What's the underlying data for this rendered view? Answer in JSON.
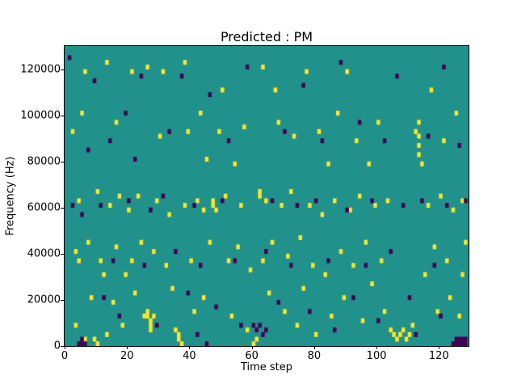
{
  "figure": {
    "title": "Predicted : PM",
    "xlabel": "Time step",
    "ylabel": "Frequency (Hz)"
  },
  "chart_data": {
    "type": "heatmap",
    "title": "Predicted : PM",
    "xlabel": "Time step",
    "ylabel": "Frequency (Hz)",
    "xlim": [
      0,
      129.5
    ],
    "ylim": [
      0,
      130000
    ],
    "x_ticks": [
      0,
      20,
      40,
      60,
      80,
      100,
      120
    ],
    "y_ticks": [
      0,
      20000,
      40000,
      60000,
      80000,
      100000,
      120000
    ],
    "grid": false,
    "legend": "none",
    "colors": {
      "background_mid": "#21918c",
      "high": "#fde725",
      "low": "#440154",
      "axis": "#000000"
    },
    "cell": {
      "x_unit_steps": 1,
      "y_unit_hz": 2000
    },
    "high_cells_x_ykhz": [
      [
        2,
        92
      ],
      [
        3,
        8
      ],
      [
        3,
        40
      ],
      [
        4,
        36
      ],
      [
        4,
        62
      ],
      [
        5,
        100
      ],
      [
        6,
        118
      ],
      [
        6,
        2
      ],
      [
        7,
        44
      ],
      [
        8,
        20
      ],
      [
        9,
        2
      ],
      [
        10,
        0
      ],
      [
        10,
        66
      ],
      [
        11,
        36
      ],
      [
        12,
        30
      ],
      [
        13,
        4
      ],
      [
        13,
        122
      ],
      [
        14,
        60
      ],
      [
        15,
        18
      ],
      [
        16,
        42
      ],
      [
        16,
        96
      ],
      [
        17,
        64
      ],
      [
        18,
        8
      ],
      [
        19,
        30
      ],
      [
        20,
        58
      ],
      [
        21,
        118
      ],
      [
        21,
        36
      ],
      [
        22,
        22
      ],
      [
        23,
        64
      ],
      [
        24,
        44
      ],
      [
        25,
        12
      ],
      [
        26,
        120
      ],
      [
        26,
        14
      ],
      [
        26,
        12
      ],
      [
        27,
        10
      ],
      [
        27,
        8
      ],
      [
        27,
        6
      ],
      [
        28,
        12
      ],
      [
        28,
        40
      ],
      [
        29,
        62
      ],
      [
        30,
        90
      ],
      [
        31,
        118
      ],
      [
        32,
        34
      ],
      [
        33,
        56
      ],
      [
        34,
        24
      ],
      [
        35,
        6
      ],
      [
        36,
        2
      ],
      [
        36,
        4
      ],
      [
        37,
        0
      ],
      [
        38,
        122
      ],
      [
        38,
        60
      ],
      [
        39,
        92
      ],
      [
        40,
        36
      ],
      [
        41,
        14
      ],
      [
        42,
        62
      ],
      [
        43,
        100
      ],
      [
        44,
        58
      ],
      [
        44,
        20
      ],
      [
        45,
        80
      ],
      [
        46,
        44
      ],
      [
        47,
        62
      ],
      [
        47,
        60
      ],
      [
        48,
        58
      ],
      [
        49,
        92
      ],
      [
        50,
        110
      ],
      [
        51,
        64
      ],
      [
        52,
        36
      ],
      [
        53,
        12
      ],
      [
        54,
        78
      ],
      [
        55,
        42
      ],
      [
        56,
        60
      ],
      [
        57,
        94
      ],
      [
        58,
        6
      ],
      [
        59,
        32
      ],
      [
        60,
        0
      ],
      [
        61,
        2
      ],
      [
        62,
        66
      ],
      [
        62,
        64
      ],
      [
        63,
        120
      ],
      [
        63,
        36
      ],
      [
        64,
        62
      ],
      [
        65,
        22
      ],
      [
        66,
        44
      ],
      [
        67,
        110
      ],
      [
        68,
        96
      ],
      [
        69,
        60
      ],
      [
        70,
        14
      ],
      [
        71,
        38
      ],
      [
        72,
        66
      ],
      [
        73,
        90
      ],
      [
        74,
        8
      ],
      [
        75,
        46
      ],
      [
        76,
        24
      ],
      [
        77,
        118
      ],
      [
        78,
        60
      ],
      [
        79,
        34
      ],
      [
        80,
        4
      ],
      [
        81,
        92
      ],
      [
        82,
        56
      ],
      [
        83,
        30
      ],
      [
        84,
        78
      ],
      [
        85,
        12
      ],
      [
        86,
        62
      ],
      [
        87,
        100
      ],
      [
        88,
        40
      ],
      [
        89,
        20
      ],
      [
        90,
        118
      ],
      [
        91,
        58
      ],
      [
        92,
        34
      ],
      [
        93,
        88
      ],
      [
        94,
        64
      ],
      [
        95,
        10
      ],
      [
        96,
        44
      ],
      [
        97,
        78
      ],
      [
        98,
        26
      ],
      [
        99,
        60
      ],
      [
        100,
        96
      ],
      [
        101,
        36
      ],
      [
        102,
        14
      ],
      [
        103,
        62
      ],
      [
        104,
        6
      ],
      [
        105,
        4
      ],
      [
        106,
        2
      ],
      [
        107,
        4
      ],
      [
        108,
        6
      ],
      [
        109,
        2
      ],
      [
        110,
        4
      ],
      [
        111,
        8
      ],
      [
        112,
        92
      ],
      [
        113,
        96
      ],
      [
        113,
        90
      ],
      [
        113,
        86
      ],
      [
        113,
        82
      ],
      [
        114,
        78
      ],
      [
        115,
        30
      ],
      [
        116,
        60
      ],
      [
        117,
        110
      ],
      [
        118,
        42
      ],
      [
        119,
        14
      ],
      [
        120,
        64
      ],
      [
        121,
        88
      ],
      [
        122,
        36
      ],
      [
        123,
        20
      ],
      [
        124,
        58
      ],
      [
        125,
        100
      ],
      [
        126,
        12
      ],
      [
        127,
        30
      ],
      [
        127,
        62
      ],
      [
        128,
        44
      ]
    ],
    "low_cells_x_ykhz": [
      [
        1,
        124
      ],
      [
        2,
        60
      ],
      [
        4,
        0
      ],
      [
        5,
        0
      ],
      [
        5,
        2
      ],
      [
        6,
        0
      ],
      [
        5,
        56
      ],
      [
        7,
        84
      ],
      [
        9,
        114
      ],
      [
        11,
        60
      ],
      [
        12,
        20
      ],
      [
        14,
        88
      ],
      [
        15,
        36
      ],
      [
        17,
        12
      ],
      [
        19,
        100
      ],
      [
        20,
        62
      ],
      [
        22,
        80
      ],
      [
        24,
        116
      ],
      [
        25,
        34
      ],
      [
        27,
        58
      ],
      [
        29,
        8
      ],
      [
        31,
        64
      ],
      [
        33,
        92
      ],
      [
        35,
        40
      ],
      [
        37,
        116
      ],
      [
        39,
        22
      ],
      [
        41,
        60
      ],
      [
        42,
        4
      ],
      [
        43,
        34
      ],
      [
        45,
        0
      ],
      [
        46,
        108
      ],
      [
        48,
        16
      ],
      [
        50,
        62
      ],
      [
        52,
        88
      ],
      [
        54,
        36
      ],
      [
        56,
        8
      ],
      [
        58,
        120
      ],
      [
        60,
        8
      ],
      [
        61,
        6
      ],
      [
        62,
        8
      ],
      [
        63,
        4
      ],
      [
        64,
        6
      ],
      [
        64,
        40
      ],
      [
        66,
        62
      ],
      [
        68,
        18
      ],
      [
        70,
        92
      ],
      [
        72,
        34
      ],
      [
        74,
        60
      ],
      [
        76,
        112
      ],
      [
        78,
        14
      ],
      [
        80,
        62
      ],
      [
        82,
        88
      ],
      [
        84,
        36
      ],
      [
        86,
        6
      ],
      [
        88,
        122
      ],
      [
        90,
        58
      ],
      [
        92,
        20
      ],
      [
        94,
        96
      ],
      [
        96,
        34
      ],
      [
        98,
        62
      ],
      [
        100,
        10
      ],
      [
        102,
        88
      ],
      [
        104,
        40
      ],
      [
        106,
        116
      ],
      [
        108,
        60
      ],
      [
        110,
        20
      ],
      [
        112,
        4
      ],
      [
        114,
        62
      ],
      [
        116,
        90
      ],
      [
        118,
        34
      ],
      [
        120,
        12
      ],
      [
        121,
        120
      ],
      [
        122,
        60
      ],
      [
        124,
        0
      ],
      [
        125,
        0
      ],
      [
        125,
        2
      ],
      [
        126,
        0
      ],
      [
        126,
        2
      ],
      [
        127,
        0
      ],
      [
        127,
        2
      ],
      [
        128,
        0
      ],
      [
        128,
        2
      ],
      [
        126,
        86
      ],
      [
        128,
        62
      ]
    ]
  }
}
